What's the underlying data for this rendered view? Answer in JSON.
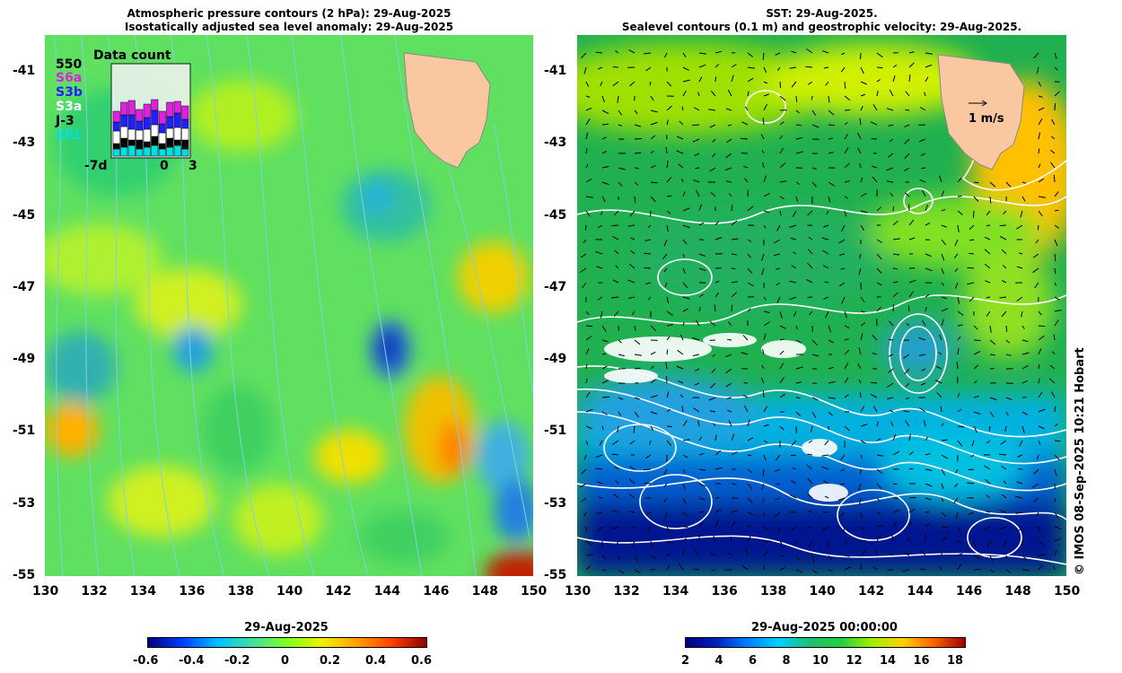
{
  "left_panel": {
    "title_line1": "Atmospheric pressure contours (2 hPa): 29-Aug-2025",
    "title_line2": "Isostatically adjusted sea level anomaly: 29-Aug-2025",
    "colorbar_title": "29-Aug-2025",
    "colorbar_ticks": [
      "-0.6",
      "-0.4",
      "-0.2",
      "0",
      "0.2",
      "0.4",
      "0.6"
    ]
  },
  "right_panel": {
    "title_line1": "SST: 29-Aug-2025.",
    "title_line2": "Sealevel contours (0.1 m) and geostrophic velocity: 29-Aug-2025.",
    "colorbar_title": "29-Aug-2025 00:00:00",
    "colorbar_ticks": [
      "2",
      "4",
      "6",
      "8",
      "10",
      "12",
      "14",
      "16",
      "18"
    ],
    "velocity_scale_label": "1 m/s"
  },
  "axes": {
    "lat_ticks": [
      "-41",
      "-43",
      "-45",
      "-47",
      "-49",
      "-51",
      "-53",
      "-55"
    ],
    "lon_ticks": [
      "130",
      "132",
      "134",
      "136",
      "138",
      "140",
      "142",
      "144",
      "146",
      "148",
      "150"
    ]
  },
  "inset": {
    "title": "Data count",
    "max_label": "550",
    "x_left": "-7d",
    "x_mid": "0",
    "x_right": "3",
    "missions": [
      {
        "name": "S6a",
        "color": "#e020e0"
      },
      {
        "name": "S3b",
        "color": "#2020ff"
      },
      {
        "name": "S3a",
        "color": "#ffffff"
      },
      {
        "name": "J-3",
        "color": "#000000"
      },
      {
        "name": "SRL",
        "color": "#00e0e0"
      }
    ]
  },
  "credit": "© IMOS 08-Sep-2025 10:21 Hobart",
  "colors": {
    "land": "#f9c8a0",
    "anomaly_scale": [
      "#000080",
      "#0040ff",
      "#00c0ff",
      "#40e0a0",
      "#80ff20",
      "#f0f000",
      "#ffa000",
      "#ff4000",
      "#900000"
    ],
    "sst_scale": [
      "#000080",
      "#0020c0",
      "#0080ff",
      "#00d0ff",
      "#20c070",
      "#20d040",
      "#a0f000",
      "#ffd000",
      "#ff6000",
      "#a00000"
    ]
  }
}
